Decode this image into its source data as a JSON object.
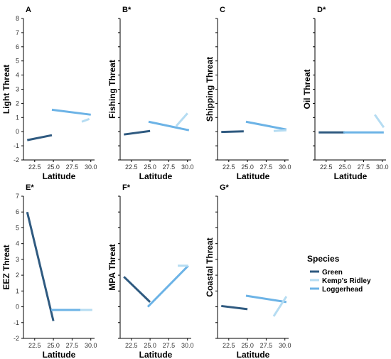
{
  "colors": {
    "Green": "#2f5a80",
    "Kemp's Ridley": "#b5dcf2",
    "Loggerhead": "#6cb3e6"
  },
  "legend": {
    "title": "Species",
    "items": [
      "Green",
      "Kemp's Ridley",
      "Loggerhead"
    ]
  },
  "chart_data": [
    {
      "type": "line",
      "title": "A",
      "xlabel": "Latitude",
      "ylabel": "Light Threat",
      "xlim": [
        21.0,
        30.5
      ],
      "ylim": [
        -2,
        8
      ],
      "xticks": [
        22.5,
        25.0,
        27.5,
        30.0
      ],
      "xtick_labels": [
        "22.5",
        "25.0",
        "27.5",
        "30.0"
      ],
      "yticks": [
        -2,
        -1,
        0,
        1,
        2,
        3,
        4,
        5,
        6,
        7,
        8
      ],
      "ytick_labels": [
        "-2",
        "-1",
        "0",
        "1",
        "2",
        "3",
        "4",
        "5",
        "6",
        "7",
        "8"
      ],
      "series": [
        {
          "name": "Green",
          "x": [
            21.5,
            24.8
          ],
          "y": [
            -0.6,
            -0.25
          ]
        },
        {
          "name": "Loggerhead",
          "x": [
            24.8,
            30.0
          ],
          "y": [
            1.55,
            1.2
          ]
        },
        {
          "name": "Kemp's Ridley",
          "x": [
            28.8,
            29.8
          ],
          "y": [
            0.7,
            0.9
          ]
        }
      ]
    },
    {
      "type": "line",
      "title": "B*",
      "xlabel": "Latitude",
      "ylabel": "Fishing Threat",
      "xlim": [
        21.0,
        30.5
      ],
      "ylim": [
        -2,
        8
      ],
      "xticks": [
        22.5,
        25.0,
        27.5,
        30.0
      ],
      "xtick_labels": [
        "22.5",
        "25.0",
        "27.5",
        "30.0"
      ],
      "yticks": [],
      "ytick_labels": [],
      "series": [
        {
          "name": "Green",
          "x": [
            21.5,
            25.0
          ],
          "y": [
            -0.2,
            0.05
          ]
        },
        {
          "name": "Loggerhead",
          "x": [
            24.8,
            30.2
          ],
          "y": [
            0.7,
            0.1
          ]
        },
        {
          "name": "Kemp's Ridley",
          "x": [
            28.5,
            30.0
          ],
          "y": [
            0.4,
            1.3
          ]
        }
      ]
    },
    {
      "type": "line",
      "title": "C",
      "xlabel": "Latitude",
      "ylabel": "Shipping Threat",
      "xlim": [
        21.0,
        30.5
      ],
      "ylim": [
        -2,
        8
      ],
      "xticks": [
        22.5,
        25.0,
        27.5,
        30.0
      ],
      "xtick_labels": [
        "22.5",
        "25.0",
        "27.5",
        "30.0"
      ],
      "yticks": [],
      "ytick_labels": [],
      "series": [
        {
          "name": "Green",
          "x": [
            21.5,
            24.5
          ],
          "y": [
            -0.02,
            0.02
          ]
        },
        {
          "name": "Loggerhead",
          "x": [
            24.8,
            30.2
          ],
          "y": [
            0.7,
            0.15
          ]
        },
        {
          "name": "Kemp's Ridley",
          "x": [
            28.5,
            30.2
          ],
          "y": [
            0.05,
            0.1
          ]
        }
      ]
    },
    {
      "type": "line",
      "title": "D*",
      "xlabel": "Latitude",
      "ylabel": "Oil Threat",
      "xlim": [
        21.0,
        30.5
      ],
      "ylim": [
        -2,
        8
      ],
      "xticks": [
        22.5,
        25.0,
        27.5,
        30.0
      ],
      "xtick_labels": [
        "22.5",
        "25.0",
        "27.5",
        "30.0"
      ],
      "yticks": [],
      "ytick_labels": [],
      "series": [
        {
          "name": "Green",
          "x": [
            21.5,
            25.0
          ],
          "y": [
            -0.05,
            -0.05
          ]
        },
        {
          "name": "Loggerhead",
          "x": [
            24.8,
            30.2
          ],
          "y": [
            -0.05,
            -0.05
          ]
        },
        {
          "name": "Kemp's Ridley",
          "x": [
            29.0,
            30.2
          ],
          "y": [
            1.2,
            0.3
          ]
        }
      ]
    },
    {
      "type": "line",
      "title": "E*",
      "xlabel": "Latitude",
      "ylabel": "EEZ Threat",
      "xlim": [
        21.0,
        30.5
      ],
      "ylim": [
        -2,
        7
      ],
      "xticks": [
        22.5,
        25.0,
        27.5,
        30.0
      ],
      "xtick_labels": [
        "22.5",
        "25.0",
        "27.5",
        "30.0"
      ],
      "yticks": [
        -2,
        -1,
        0,
        1,
        2,
        3,
        4,
        5,
        6,
        7
      ],
      "ytick_labels": [
        "-2",
        "-1",
        "0",
        "1",
        "2",
        "3",
        "4",
        "5",
        "6",
        "7"
      ],
      "series": [
        {
          "name": "Green",
          "x": [
            21.5,
            25.0
          ],
          "y": [
            6.0,
            -0.9
          ]
        },
        {
          "name": "Loggerhead",
          "x": [
            24.7,
            28.6
          ],
          "y": [
            -0.2,
            -0.2
          ]
        },
        {
          "name": "Kemp's Ridley",
          "x": [
            28.6,
            30.2
          ],
          "y": [
            -0.2,
            -0.2
          ]
        }
      ]
    },
    {
      "type": "line",
      "title": "F*",
      "xlabel": "Latitude",
      "ylabel": "MPA Threat",
      "xlim": [
        21.0,
        30.5
      ],
      "ylim": [
        -2,
        7
      ],
      "xticks": [
        22.5,
        25.0,
        27.5,
        30.0
      ],
      "xtick_labels": [
        "22.5",
        "25.0",
        "27.5",
        "30.0"
      ],
      "yticks": [],
      "ytick_labels": [],
      "series": [
        {
          "name": "Green",
          "x": [
            21.5,
            25.0
          ],
          "y": [
            1.9,
            0.3
          ]
        },
        {
          "name": "Loggerhead",
          "x": [
            24.7,
            30.1
          ],
          "y": [
            0.0,
            2.6
          ]
        },
        {
          "name": "Kemp's Ridley",
          "x": [
            28.7,
            30.1
          ],
          "y": [
            2.6,
            2.6
          ]
        }
      ]
    },
    {
      "type": "line",
      "title": "G*",
      "xlabel": "Latitude",
      "ylabel": "Coastal Threat",
      "xlim": [
        21.0,
        30.5
      ],
      "ylim": [
        -2,
        7
      ],
      "xticks": [
        22.5,
        25.0,
        27.5,
        30.0
      ],
      "xtick_labels": [
        "22.5",
        "25.0",
        "27.5",
        "30.0"
      ],
      "yticks": [],
      "ytick_labels": [],
      "series": [
        {
          "name": "Green",
          "x": [
            21.5,
            25.0
          ],
          "y": [
            0.05,
            -0.15
          ]
        },
        {
          "name": "Loggerhead",
          "x": [
            24.8,
            30.2
          ],
          "y": [
            0.7,
            0.3
          ]
        },
        {
          "name": "Kemp's Ridley",
          "x": [
            28.5,
            30.2
          ],
          "y": [
            -0.6,
            0.65
          ]
        }
      ]
    }
  ]
}
